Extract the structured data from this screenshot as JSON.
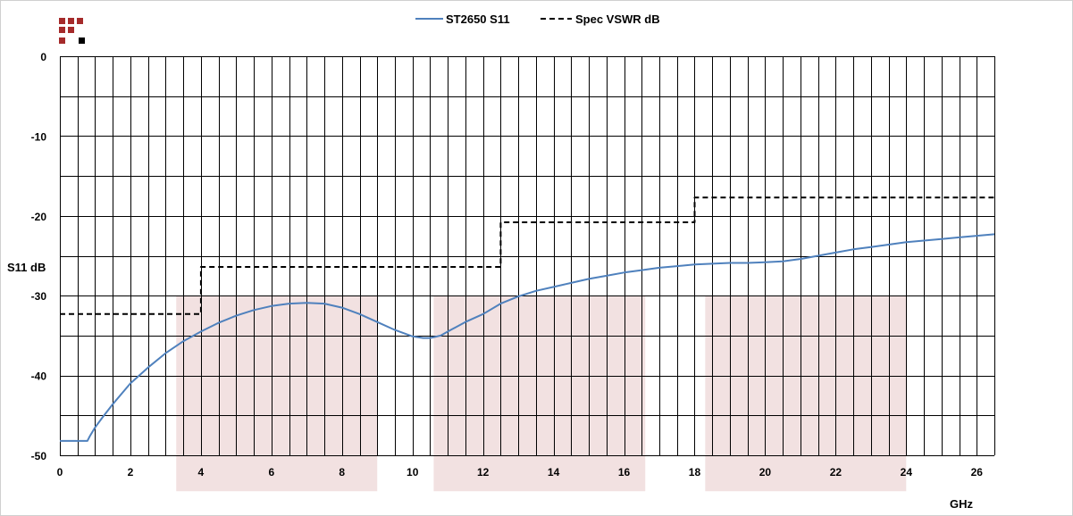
{
  "chart_data": {
    "type": "line",
    "title": "",
    "xlabel": "GHz",
    "ylabel": "S11 dB",
    "xlim": [
      0,
      26.5
    ],
    "ylim": [
      -50,
      0
    ],
    "x_major_ticks": [
      0,
      2,
      4,
      6,
      8,
      10,
      12,
      14,
      16,
      18,
      20,
      22,
      24,
      26
    ],
    "x_minor_step": 0.5,
    "y_major_ticks": [
      0,
      -10,
      -20,
      -30,
      -40,
      -50
    ],
    "y_minor_step": 5,
    "grid": true,
    "legend_position": "top",
    "legend": [
      {
        "name": "ST2650 S11",
        "style": "solid",
        "color": "#4f81bd"
      },
      {
        "name": "Spec VSWR dB",
        "style": "dashed",
        "color": "#000000"
      }
    ],
    "series": [
      {
        "name": "ST2650 S11",
        "style": "solid",
        "color": "#4f81bd",
        "x": [
          0,
          0.78,
          0.85,
          1.0,
          1.2,
          1.5,
          2.0,
          2.5,
          3.0,
          3.5,
          4.0,
          4.5,
          5.0,
          5.5,
          6.0,
          6.5,
          7.0,
          7.5,
          8.0,
          8.5,
          9.0,
          9.5,
          10.0,
          10.3,
          10.5,
          10.8,
          11.0,
          11.5,
          12.0,
          12.5,
          13.0,
          13.5,
          14.0,
          14.5,
          15.0,
          15.5,
          16.0,
          16.5,
          17.0,
          17.5,
          18.0,
          18.5,
          19.0,
          19.5,
          20.0,
          20.5,
          21.0,
          21.5,
          22.0,
          22.5,
          23.0,
          23.5,
          24.0,
          24.5,
          25.0,
          25.5,
          26.0,
          26.5
        ],
        "y": [
          -48.2,
          -48.2,
          -47.6,
          -46.5,
          -45.3,
          -43.6,
          -41.0,
          -39.0,
          -37.2,
          -35.7,
          -34.5,
          -33.4,
          -32.5,
          -31.8,
          -31.3,
          -31.0,
          -30.9,
          -31.0,
          -31.5,
          -32.3,
          -33.3,
          -34.3,
          -35.1,
          -35.3,
          -35.3,
          -35.0,
          -34.5,
          -33.3,
          -32.3,
          -31.0,
          -30.1,
          -29.4,
          -28.9,
          -28.4,
          -27.9,
          -27.5,
          -27.1,
          -26.8,
          -26.5,
          -26.3,
          -26.1,
          -26.0,
          -25.9,
          -25.9,
          -25.8,
          -25.7,
          -25.4,
          -25.0,
          -24.6,
          -24.2,
          -23.9,
          -23.6,
          -23.3,
          -23.1,
          -22.9,
          -22.7,
          -22.5,
          -22.3
        ]
      },
      {
        "name": "Spec VSWR dB",
        "style": "dashed",
        "color": "#000000",
        "x": [
          0,
          4,
          4,
          12.5,
          12.5,
          18,
          18,
          26.5
        ],
        "y": [
          -32.3,
          -32.3,
          -26.4,
          -26.4,
          -20.8,
          -20.8,
          -17.7,
          -17.7
        ]
      }
    ],
    "shaded_bands": [
      {
        "x": [
          3.3,
          9.0
        ],
        "y": [
          -30,
          -54.5
        ],
        "color": "#f2e1e1"
      },
      {
        "x": [
          10.6,
          16.6
        ],
        "y": [
          -30,
          -54.5
        ],
        "color": "#f2e1e1"
      },
      {
        "x": [
          18.3,
          24.0
        ],
        "y": [
          -30,
          -54.5
        ],
        "color": "#f2e1e1"
      }
    ]
  },
  "logo": {
    "name": "logo-icon",
    "colors": [
      "#a52a2a",
      "#000000"
    ]
  }
}
